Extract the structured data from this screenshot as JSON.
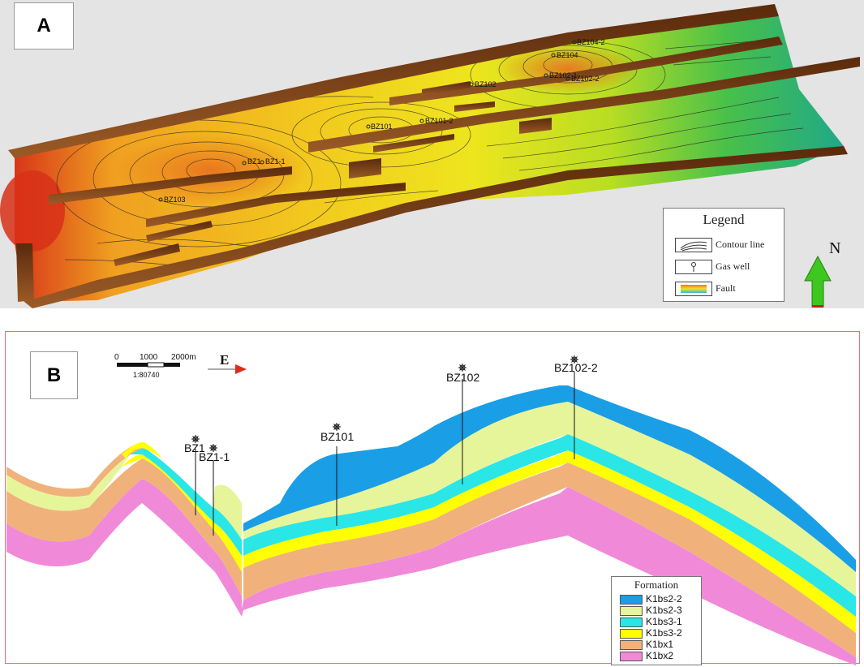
{
  "panel_a": {
    "label": "A",
    "wells": [
      "BZ104-2",
      "BZ104",
      "BZ102",
      "BZ102-1",
      "BZ102-2",
      "BZ101",
      "BZ101-2",
      "BZ1",
      "BZ1-1",
      "BZ103"
    ],
    "legend": {
      "title": "Legend",
      "items": [
        {
          "label": "Contour line",
          "icon": "contour-lines-icon"
        },
        {
          "label": "Gas well",
          "icon": "gas-well-icon"
        },
        {
          "label": "Fault",
          "icon": "fault-gradient-icon"
        }
      ]
    },
    "north_label": "N",
    "colors": {
      "high": "#d23a1a",
      "mid": "#f2d21a",
      "low": "#22a04a",
      "fault": "#7a3a12"
    }
  },
  "panel_b": {
    "label": "B",
    "scale": {
      "ticks": [
        "0",
        "1000",
        "2000m"
      ],
      "ratio": "1:80740"
    },
    "direction_label": "E",
    "wells": [
      "BZ1",
      "BZ1-1",
      "BZ101",
      "BZ102",
      "BZ102-2"
    ],
    "legend": {
      "title": "Formation",
      "items": [
        {
          "label": "K1bs2-2",
          "color": "#1a9ee6"
        },
        {
          "label": "K1bs2-3",
          "color": "#e6f59a"
        },
        {
          "label": "K1bs3-1",
          "color": "#2be6e6"
        },
        {
          "label": "K1bs3-2",
          "color": "#ffff00"
        },
        {
          "label": "K1bx1",
          "color": "#f0b27a"
        },
        {
          "label": "K1bx2",
          "color": "#f08ad8"
        }
      ]
    }
  }
}
